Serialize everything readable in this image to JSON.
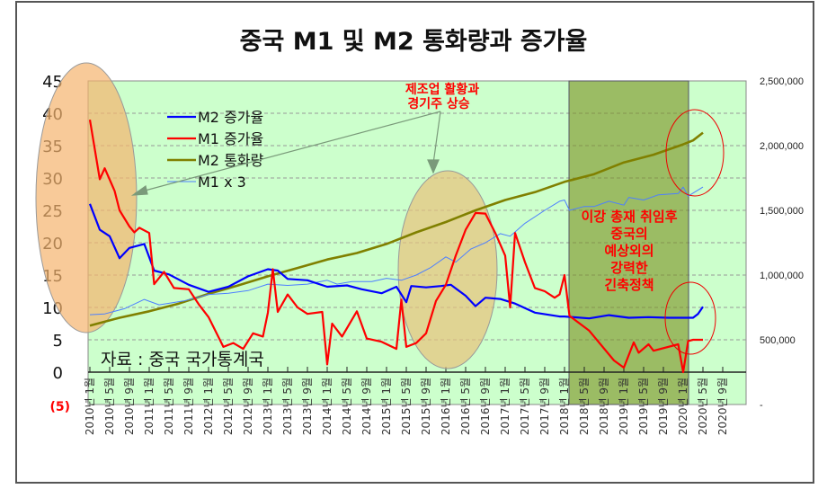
{
  "chart_data": {
    "type": "line",
    "title": "중국 M1 및 M2 통화량과 증가율",
    "source_note": "자료 : 중국 국가통계국",
    "left_axis": {
      "ylim": [
        -5,
        45
      ],
      "ticks": [
        "45",
        "40",
        "35",
        "30",
        "25",
        "20",
        "15",
        "10",
        "5",
        "0",
        "(5)"
      ]
    },
    "right_axis": {
      "ylim": [
        0,
        2500000
      ],
      "ticks": [
        "2,500,000",
        "2,000,000",
        "1,500,000",
        "1,000,000",
        "500,000",
        "-"
      ]
    },
    "x_tick_labels": [
      "2010년 1월",
      "2010년 5월",
      "2010년 9월",
      "2011년 1월",
      "2011년 5월",
      "2011년 9월",
      "2012년 1월",
      "2012년 5월",
      "2012년 9월",
      "2013년 1월",
      "2013년 5월",
      "2013년 9월",
      "2014년 1월",
      "2014년 5월",
      "2014년 9월",
      "2015년 1월",
      "2015년 5월",
      "2015년 9월",
      "2016년 1월",
      "2016년 5월",
      "2016년 9월",
      "2017년 1월",
      "2017년 5월",
      "2017년 9월",
      "2018년 1월",
      "2018년 5월",
      "2018년 9월",
      "2019년 1월",
      "2019년 5월",
      "2019년 9월",
      "2020년 1월",
      "2020년 5월",
      "2020년 9월"
    ],
    "x_tick_dates": [
      "2010-01",
      "2010-05",
      "2010-09",
      "2011-01",
      "2011-05",
      "2011-09",
      "2012-01",
      "2012-05",
      "2012-09",
      "2013-01",
      "2013-05",
      "2013-09",
      "2014-01",
      "2014-05",
      "2014-09",
      "2015-01",
      "2015-05",
      "2015-09",
      "2016-01",
      "2016-05",
      "2016-09",
      "2017-01",
      "2017-05",
      "2017-09",
      "2018-01",
      "2018-05",
      "2018-09",
      "2019-01",
      "2019-05",
      "2019-09",
      "2020-01",
      "2020-05",
      "2020-09"
    ],
    "legend_placement": "top-left",
    "series": [
      {
        "name": "M2 증가율",
        "axis": "left",
        "color": "#0000ff",
        "width": 2.2,
        "points": [
          [
            "2010-01",
            26
          ],
          [
            "2010-03",
            22
          ],
          [
            "2010-05",
            21
          ],
          [
            "2010-07",
            17.6
          ],
          [
            "2010-09",
            19.2
          ],
          [
            "2010-12",
            19.8
          ],
          [
            "2011-02",
            15.7
          ],
          [
            "2011-05",
            15.1
          ],
          [
            "2011-09",
            13.5
          ],
          [
            "2012-01",
            12.4
          ],
          [
            "2012-05",
            13.2
          ],
          [
            "2012-09",
            14.8
          ],
          [
            "2013-01",
            15.9
          ],
          [
            "2013-03",
            15.7
          ],
          [
            "2013-05",
            14.4
          ],
          [
            "2013-09",
            14.2
          ],
          [
            "2014-01",
            13.2
          ],
          [
            "2014-05",
            13.4
          ],
          [
            "2014-08",
            12.8
          ],
          [
            "2014-12",
            12.2
          ],
          [
            "2015-03",
            13.2
          ],
          [
            "2015-05",
            10.8
          ],
          [
            "2015-06",
            13.3
          ],
          [
            "2015-09",
            13.1
          ],
          [
            "2015-12",
            13.3
          ],
          [
            "2016-02",
            13.5
          ],
          [
            "2016-05",
            11.8
          ],
          [
            "2016-07",
            10.2
          ],
          [
            "2016-09",
            11.5
          ],
          [
            "2016-12",
            11.3
          ],
          [
            "2017-03",
            10.6
          ],
          [
            "2017-07",
            9.2
          ],
          [
            "2017-12",
            8.6
          ],
          [
            "2018-01",
            8.6
          ],
          [
            "2018-06",
            8.3
          ],
          [
            "2018-10",
            8.8
          ],
          [
            "2019-02",
            8.4
          ],
          [
            "2019-06",
            8.5
          ],
          [
            "2019-10",
            8.4
          ],
          [
            "2020-01",
            8.4
          ],
          [
            "2020-03",
            8.4
          ],
          [
            "2020-04",
            9.0
          ],
          [
            "2020-05",
            10.1
          ]
        ]
      },
      {
        "name": "M1 증가율",
        "axis": "left",
        "color": "#ff0000",
        "width": 2.2,
        "points": [
          [
            "2010-01",
            39
          ],
          [
            "2010-03",
            29.8
          ],
          [
            "2010-04",
            31.5
          ],
          [
            "2010-06",
            28
          ],
          [
            "2010-07",
            25
          ],
          [
            "2010-09",
            22.5
          ],
          [
            "2010-10",
            21.6
          ],
          [
            "2010-11",
            22.3
          ],
          [
            "2011-01",
            21.5
          ],
          [
            "2011-02",
            13.6
          ],
          [
            "2011-04",
            15.5
          ],
          [
            "2011-06",
            13
          ],
          [
            "2011-09",
            12.8
          ],
          [
            "2011-11",
            10.5
          ],
          [
            "2012-01",
            8.5
          ],
          [
            "2012-04",
            3.9
          ],
          [
            "2012-06",
            4.5
          ],
          [
            "2012-08",
            3.6
          ],
          [
            "2012-10",
            6
          ],
          [
            "2012-12",
            5.5
          ],
          [
            "2013-01",
            9.2
          ],
          [
            "2013-02",
            15.9
          ],
          [
            "2013-03",
            9.3
          ],
          [
            "2013-05",
            12
          ],
          [
            "2013-07",
            10
          ],
          [
            "2013-09",
            9
          ],
          [
            "2013-12",
            9.3
          ],
          [
            "2014-01",
            1.2
          ],
          [
            "2014-02",
            7.5
          ],
          [
            "2014-04",
            5.5
          ],
          [
            "2014-07",
            9.4
          ],
          [
            "2014-09",
            5.2
          ],
          [
            "2014-12",
            4.7
          ],
          [
            "2015-03",
            3.6
          ],
          [
            "2015-04",
            11.2
          ],
          [
            "2015-05",
            3.9
          ],
          [
            "2015-07",
            4.5
          ],
          [
            "2015-09",
            6
          ],
          [
            "2015-11",
            11
          ],
          [
            "2016-01",
            13.5
          ],
          [
            "2016-03",
            18
          ],
          [
            "2016-05",
            22
          ],
          [
            "2016-07",
            24.6
          ],
          [
            "2016-09",
            24.5
          ],
          [
            "2016-11",
            21.5
          ],
          [
            "2017-01",
            18
          ],
          [
            "2017-02",
            10
          ],
          [
            "2017-03",
            21.5
          ],
          [
            "2017-05",
            17
          ],
          [
            "2017-07",
            13
          ],
          [
            "2017-09",
            12.5
          ],
          [
            "2017-11",
            11.5
          ],
          [
            "2017-12",
            12
          ],
          [
            "2018-01",
            15
          ],
          [
            "2018-02",
            8.7
          ],
          [
            "2018-06",
            6.4
          ],
          [
            "2018-11",
            1.8
          ],
          [
            "2019-01",
            0.7
          ],
          [
            "2019-03",
            4.6
          ],
          [
            "2019-04",
            3
          ],
          [
            "2019-06",
            4.3
          ],
          [
            "2019-07",
            3.3
          ],
          [
            "2019-12",
            4.3
          ],
          [
            "2020-01",
            0
          ],
          [
            "2020-02",
            4.8
          ],
          [
            "2020-03",
            5
          ],
          [
            "2020-05",
            5
          ]
        ]
      },
      {
        "name": "M2 통화량",
        "axis": "right",
        "color": "#808000",
        "width": 2.6,
        "points": [
          [
            "2010-01",
            610000
          ],
          [
            "2010-07",
            670000
          ],
          [
            "2011-01",
            720000
          ],
          [
            "2011-07",
            780000
          ],
          [
            "2012-01",
            855000
          ],
          [
            "2012-07",
            920000
          ],
          [
            "2013-01",
            990000
          ],
          [
            "2013-07",
            1055000
          ],
          [
            "2014-01",
            1120000
          ],
          [
            "2014-07",
            1170000
          ],
          [
            "2015-01",
            1240000
          ],
          [
            "2015-07",
            1330000
          ],
          [
            "2016-01",
            1410000
          ],
          [
            "2016-07",
            1500000
          ],
          [
            "2017-01",
            1580000
          ],
          [
            "2017-07",
            1640000
          ],
          [
            "2018-01",
            1720000
          ],
          [
            "2018-07",
            1780000
          ],
          [
            "2019-01",
            1870000
          ],
          [
            "2019-07",
            1930000
          ],
          [
            "2020-01",
            2010000
          ],
          [
            "2020-03",
            2040000
          ],
          [
            "2020-05",
            2100000
          ]
        ]
      },
      {
        "name": "M1 x 3",
        "axis": "right",
        "color": "#4d7fff",
        "width": 1,
        "points": [
          [
            "2010-01",
            694000
          ],
          [
            "2010-04",
            700000
          ],
          [
            "2010-08",
            740000
          ],
          [
            "2010-12",
            812000
          ],
          [
            "2011-03",
            770000
          ],
          [
            "2011-08",
            800000
          ],
          [
            "2012-01",
            850000
          ],
          [
            "2012-05",
            860000
          ],
          [
            "2012-09",
            880000
          ],
          [
            "2013-01",
            930000
          ],
          [
            "2013-05",
            920000
          ],
          [
            "2013-09",
            930000
          ],
          [
            "2014-01",
            960000
          ],
          [
            "2014-03",
            930000
          ],
          [
            "2014-06",
            950000
          ],
          [
            "2014-10",
            950000
          ],
          [
            "2015-01",
            975000
          ],
          [
            "2015-04",
            960000
          ],
          [
            "2015-07",
            1000000
          ],
          [
            "2015-10",
            1060000
          ],
          [
            "2016-01",
            1140000
          ],
          [
            "2016-03",
            1100000
          ],
          [
            "2016-06",
            1200000
          ],
          [
            "2016-09",
            1250000
          ],
          [
            "2016-12",
            1320000
          ],
          [
            "2017-02",
            1300000
          ],
          [
            "2017-05",
            1400000
          ],
          [
            "2017-09",
            1500000
          ],
          [
            "2017-12",
            1570000
          ],
          [
            "2018-01",
            1580000
          ],
          [
            "2018-02",
            1500000
          ],
          [
            "2018-05",
            1530000
          ],
          [
            "2018-07",
            1530000
          ],
          [
            "2018-10",
            1570000
          ],
          [
            "2019-01",
            1540000
          ],
          [
            "2019-02",
            1600000
          ],
          [
            "2019-05",
            1580000
          ],
          [
            "2019-08",
            1620000
          ],
          [
            "2019-12",
            1630000
          ],
          [
            "2020-01",
            1680000
          ],
          [
            "2020-02",
            1610000
          ],
          [
            "2020-05",
            1680000
          ]
        ]
      }
    ],
    "shaded_period": [
      "2018-02",
      "2020-02"
    ],
    "annotations": {
      "boom": [
        "제조업 활황과",
        "경기주 상승"
      ],
      "tightening": [
        "이강 총재 취임후",
        "중국의",
        "예상외의",
        "강력한",
        "긴축정책"
      ]
    }
  }
}
